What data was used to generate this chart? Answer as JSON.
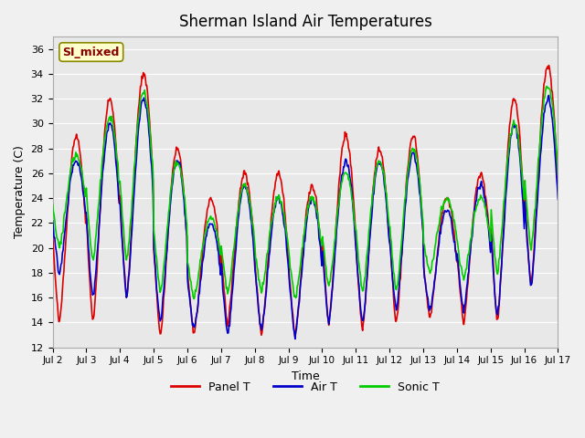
{
  "title": "Sherman Island Air Temperatures",
  "xlabel": "Time",
  "ylabel": "Temperature (C)",
  "ylim": [
    12,
    37
  ],
  "yticks": [
    12,
    14,
    16,
    18,
    20,
    22,
    24,
    26,
    28,
    30,
    32,
    34,
    36
  ],
  "bg_color": "#e8e8e8",
  "panel_color": "#dd0000",
  "air_color": "#0000cc",
  "sonic_color": "#00cc00",
  "label_box_text": "SI_mixed",
  "label_box_facecolor": "#ffffcc",
  "label_box_edgecolor": "#888800",
  "label_box_textcolor": "#880000",
  "legend_labels": [
    "Panel T",
    "Air T",
    "Sonic T"
  ],
  "xtick_labels": [
    "Jul 2",
    "Jul 3",
    "Jul 4",
    "Jul 5",
    "Jul 6",
    "Jul 7",
    "Jul 8",
    "Jul 9",
    "Jul 10",
    "Jul 11",
    "Jul 12",
    "Jul 13",
    "Jul 14",
    "Jul 15",
    "Jul 16",
    "Jul 17"
  ],
  "n_days": 15,
  "pts_per_day": 48,
  "panel_max": [
    29,
    32,
    34,
    28,
    24,
    26,
    26,
    25,
    29,
    28,
    29,
    24,
    26,
    32,
    34.5
  ],
  "panel_min": [
    14,
    14,
    16,
    13,
    13,
    14,
    13,
    13,
    14,
    13.5,
    14,
    14.5,
    14,
    14,
    17
  ],
  "air_max": [
    27,
    30,
    32,
    27,
    22,
    25,
    24,
    24,
    27,
    27,
    27.5,
    23,
    25,
    30,
    32
  ],
  "air_min": [
    18,
    16,
    16,
    14,
    13.5,
    13,
    13.5,
    13,
    14,
    14,
    15,
    15,
    15,
    14.5,
    17
  ],
  "sonic_max": [
    27.5,
    30.5,
    32.5,
    27,
    22.5,
    25,
    24,
    24,
    26,
    27,
    28,
    24,
    24,
    30,
    33
  ],
  "sonic_min": [
    20,
    19,
    19,
    16.5,
    16,
    16.5,
    16.5,
    16,
    17,
    16.5,
    16.5,
    18,
    17.5,
    18,
    20
  ]
}
